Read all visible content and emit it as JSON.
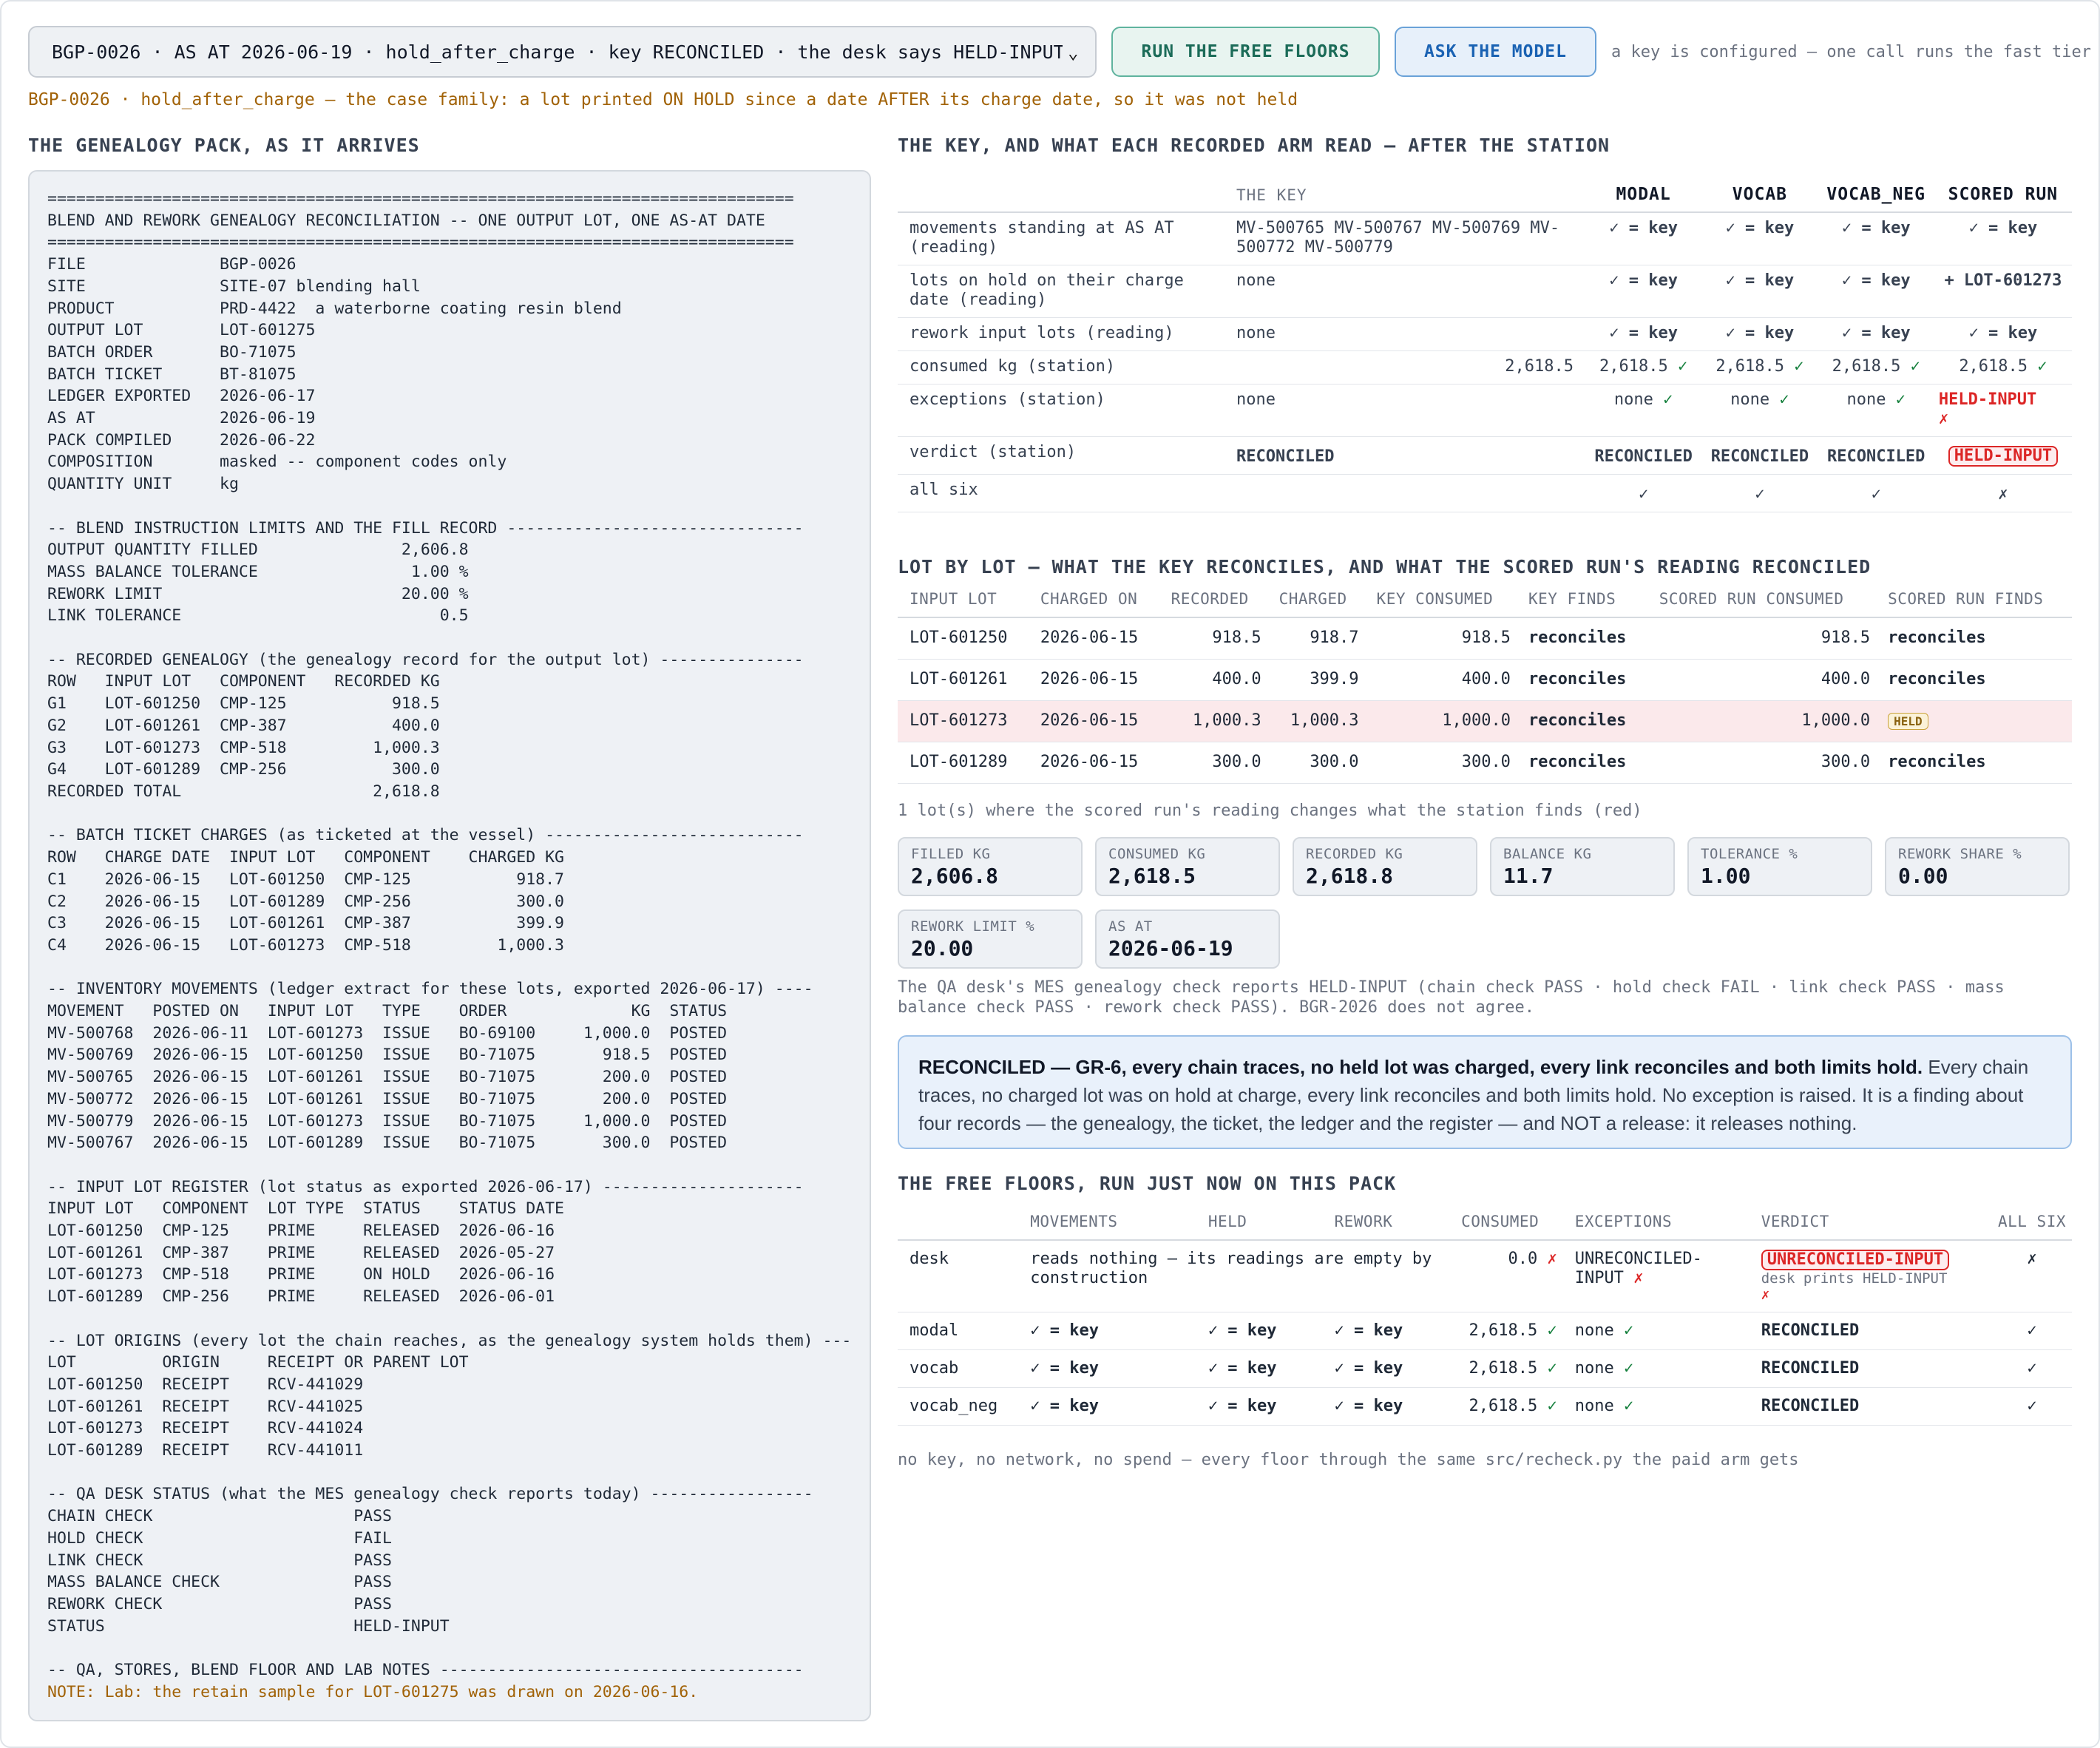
{
  "header": {
    "case_select_value": "BGP-0026 · AS AT 2026-06-19 · hold_after_charge · key RECONCILED · the desk says HELD-INPUT",
    "run_floors_label": "RUN THE FREE FLOORS",
    "ask_model_label": "ASK THE MODEL",
    "key_note": "a key is configured — one call runs the fast tier",
    "subtitle": "BGP-0026 · hold_after_charge — the case family: a lot printed ON HOLD since a date AFTER its charge date, so it was not held"
  },
  "left": {
    "heading": "THE GENEALOGY PACK, AS IT ARRIVES",
    "pack_text": "==============================================================================\nBLEND AND REWORK GENEALOGY RECONCILIATION -- ONE OUTPUT LOT, ONE AS-AT DATE\n==============================================================================\nFILE              BGP-0026\nSITE              SITE-07 blending hall\nPRODUCT           PRD-4422  a waterborne coating resin blend\nOUTPUT LOT        LOT-601275\nBATCH ORDER       BO-71075\nBATCH TICKET      BT-81075\nLEDGER EXPORTED   2026-06-17\nAS AT             2026-06-19\nPACK COMPILED     2026-06-22\nCOMPOSITION       masked -- component codes only\nQUANTITY UNIT     kg\n\n-- BLEND INSTRUCTION LIMITS AND THE FILL RECORD -------------------------------\nOUTPUT QUANTITY FILLED               2,606.8\nMASS BALANCE TOLERANCE                1.00 %\nREWORK LIMIT                         20.00 %\nLINK TOLERANCE                           0.5\n\n-- RECORDED GENEALOGY (the genealogy record for the output lot) ---------------\nROW   INPUT LOT   COMPONENT   RECORDED KG\nG1    LOT-601250  CMP-125           918.5\nG2    LOT-601261  CMP-387           400.0\nG3    LOT-601273  CMP-518         1,000.3\nG4    LOT-601289  CMP-256           300.0\nRECORDED TOTAL                    2,618.8\n\n-- BATCH TICKET CHARGES (as ticketed at the vessel) ---------------------------\nROW   CHARGE DATE  INPUT LOT   COMPONENT    CHARGED KG\nC1    2026-06-15   LOT-601250  CMP-125           918.7\nC2    2026-06-15   LOT-601289  CMP-256           300.0\nC3    2026-06-15   LOT-601261  CMP-387           399.9\nC4    2026-06-15   LOT-601273  CMP-518         1,000.3\n\n-- INVENTORY MOVEMENTS (ledger extract for these lots, exported 2026-06-17) ----\nMOVEMENT   POSTED ON   INPUT LOT   TYPE    ORDER             KG  STATUS\nMV-500768  2026-06-11  LOT-601273  ISSUE   BO-69100     1,000.0  POSTED\nMV-500769  2026-06-15  LOT-601250  ISSUE   BO-71075       918.5  POSTED\nMV-500765  2026-06-15  LOT-601261  ISSUE   BO-71075       200.0  POSTED\nMV-500772  2026-06-15  LOT-601261  ISSUE   BO-71075       200.0  POSTED\nMV-500779  2026-06-15  LOT-601273  ISSUE   BO-71075     1,000.0  POSTED\nMV-500767  2026-06-15  LOT-601289  ISSUE   BO-71075       300.0  POSTED\n\n-- INPUT LOT REGISTER (lot status as exported 2026-06-17) ---------------------\nINPUT LOT   COMPONENT  LOT TYPE  STATUS    STATUS DATE\nLOT-601250  CMP-125    PRIME     RELEASED  2026-06-16\nLOT-601261  CMP-387    PRIME     RELEASED  2026-05-27\nLOT-601273  CMP-518    PRIME     ON HOLD   2026-06-16\nLOT-601289  CMP-256    PRIME     RELEASED  2026-06-01\n\n-- LOT ORIGINS (every lot the chain reaches, as the genealogy system holds them) ---\nLOT         ORIGIN     RECEIPT OR PARENT LOT\nLOT-601250  RECEIPT    RCV-441029\nLOT-601261  RECEIPT    RCV-441025\nLOT-601273  RECEIPT    RCV-441024\nLOT-601289  RECEIPT    RCV-441011\n\n-- QA DESK STATUS (what the MES genealogy check reports today) -----------------\nCHAIN CHECK                     PASS\nHOLD CHECK                      FAIL\nLINK CHECK                      PASS\nMASS BALANCE CHECK              PASS\nREWORK CHECK                    PASS\nSTATUS                          HELD-INPUT\n\n-- QA, STORES, BLEND FLOOR AND LAB NOTES --------------------------------------",
    "pack_note": "NOTE: Lab: the retain sample for LOT-601275 was drawn on 2026-06-16."
  },
  "key_table": {
    "heading": "THE KEY, AND WHAT EACH RECORDED ARM READ — AFTER THE STATION",
    "columns": [
      "THE KEY",
      "MODAL",
      "VOCAB",
      "VOCAB_NEG",
      "SCORED RUN"
    ],
    "rows": [
      {
        "label": "movements standing at AS AT (reading)",
        "key": "MV-500765 MV-500767 MV-500769 MV-500772 MV-500779",
        "modal": "✓ = key",
        "vocab": "✓ = key",
        "vocab_neg": "✓ = key",
        "scored": "✓ = key"
      },
      {
        "label": "lots on hold on their charge date (reading)",
        "key": "none",
        "modal": "✓ = key",
        "vocab": "✓ = key",
        "vocab_neg": "✓ = key",
        "scored": "+ LOT-601273"
      },
      {
        "label": "rework input lots (reading)",
        "key": "none",
        "modal": "✓ = key",
        "vocab": "✓ = key",
        "vocab_neg": "✓ = key",
        "scored": "✓ = key"
      },
      {
        "label": "consumed kg (station)",
        "key": "2,618.5",
        "modal": "2,618.5",
        "vocab": "2,618.5",
        "vocab_neg": "2,618.5",
        "scored": "2,618.5",
        "mark": "✓"
      },
      {
        "label": "exceptions (station)",
        "key": "none",
        "modal": "none",
        "vocab": "none",
        "vocab_neg": "none",
        "scored": "HELD-INPUT",
        "mark": "✓",
        "bad_mark": "✗"
      },
      {
        "label": "verdict (station)",
        "key": "RECONCILED",
        "modal": "RECONCILED",
        "vocab": "RECONCILED",
        "vocab_neg": "RECONCILED",
        "scored": "HELD-INPUT"
      },
      {
        "label": "all six",
        "modal": "✓",
        "vocab": "✓",
        "vocab_neg": "✓",
        "scored": "✗"
      }
    ]
  },
  "lot_table": {
    "heading": "LOT BY LOT — WHAT THE KEY RECONCILES, AND WHAT THE SCORED RUN'S READING RECONCILED",
    "columns": [
      "INPUT LOT",
      "CHARGED ON",
      "RECORDED",
      "CHARGED",
      "KEY CONSUMED",
      "KEY FINDS",
      "SCORED RUN CONSUMED",
      "SCORED RUN FINDS"
    ],
    "rows": [
      {
        "lot": "LOT-601250",
        "charged_on": "2026-06-15",
        "recorded": "918.5",
        "charged": "918.7",
        "key_consumed": "918.5",
        "key_finds": "reconciles",
        "scored_consumed": "918.5",
        "scored_finds": "reconciles"
      },
      {
        "lot": "LOT-601261",
        "charged_on": "2026-06-15",
        "recorded": "400.0",
        "charged": "399.9",
        "key_consumed": "400.0",
        "key_finds": "reconciles",
        "scored_consumed": "400.0",
        "scored_finds": "reconciles"
      },
      {
        "lot": "LOT-601273",
        "charged_on": "2026-06-15",
        "recorded": "1,000.3",
        "charged": "1,000.3",
        "key_consumed": "1,000.0",
        "key_finds": "reconciles",
        "scored_consumed": "1,000.0",
        "scored_finds": "HELD"
      },
      {
        "lot": "LOT-601289",
        "charged_on": "2026-06-15",
        "recorded": "300.0",
        "charged": "300.0",
        "key_consumed": "300.0",
        "key_finds": "reconciles",
        "scored_consumed": "300.0",
        "scored_finds": "reconciles"
      }
    ],
    "caption": "1 lot(s) where the scored run's reading changes what the station finds (red)"
  },
  "stats": [
    {
      "label": "FILLED KG",
      "value": "2,606.8"
    },
    {
      "label": "CONSUMED KG",
      "value": "2,618.5"
    },
    {
      "label": "RECORDED KG",
      "value": "2,618.8"
    },
    {
      "label": "BALANCE KG",
      "value": "11.7"
    },
    {
      "label": "TOLERANCE %",
      "value": "1.00"
    },
    {
      "label": "REWORK SHARE %",
      "value": "0.00"
    },
    {
      "label": "REWORK LIMIT %",
      "value": "20.00"
    },
    {
      "label": "AS AT",
      "value": "2026-06-19"
    }
  ],
  "desk_note": "The QA desk's MES genealogy check reports HELD-INPUT (chain check PASS · hold check FAIL · link check PASS · mass balance check PASS · rework check PASS). BGR-2026 does not agree.",
  "callout": {
    "bold": "RECONCILED — GR-6, every chain traces, no held lot was charged, every link reconciles and both limits hold.",
    "text": " Every chain traces, no charged lot was on hold at charge, every link reconciles and both limits hold. No exception is raised. It is a finding about four records — the genealogy, the ticket, the ledger and the register — and NOT a release: it releases nothing."
  },
  "floors_table": {
    "heading": "THE FREE FLOORS, RUN JUST NOW ON THIS PACK",
    "columns": [
      "MOVEMENTS",
      "HELD",
      "REWORK",
      "CONSUMED",
      "EXCEPTIONS",
      "VERDICT",
      "ALL SIX"
    ],
    "rows": [
      {
        "name": "desk",
        "movements": "reads nothing — its readings are empty by construction",
        "held": "",
        "rework": "",
        "consumed": "0.0",
        "exceptions": "UNRECONCILED-INPUT",
        "verdict": "UNRECONCILED-INPUT",
        "verdict_note": "desk prints HELD-INPUT",
        "all_six": "✗"
      },
      {
        "name": "modal",
        "movements": "✓ = key",
        "held": "✓ = key",
        "rework": "✓ = key",
        "consumed": "2,618.5",
        "exceptions": "none",
        "verdict": "RECONCILED",
        "all_six": "✓"
      },
      {
        "name": "vocab",
        "movements": "✓ = key",
        "held": "✓ = key",
        "rework": "✓ = key",
        "consumed": "2,618.5",
        "exceptions": "none",
        "verdict": "RECONCILED",
        "all_six": "✓"
      },
      {
        "name": "vocab_neg",
        "movements": "✓ = key",
        "held": "✓ = key",
        "rework": "✓ = key",
        "consumed": "2,618.5",
        "exceptions": "none",
        "verdict": "RECONCILED",
        "all_six": "✓"
      }
    ],
    "footer": "no key, no network, no spend — every floor through the same src/recheck.py the paid arm gets"
  }
}
